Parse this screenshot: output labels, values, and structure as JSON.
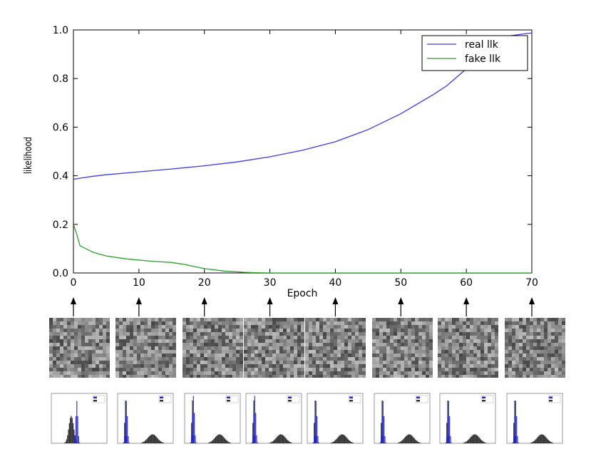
{
  "chart_data": {
    "type": "line",
    "xlabel": "Epoch",
    "ylabel": "likelihood",
    "xlim": [
      0,
      70
    ],
    "ylim": [
      0,
      1.0
    ],
    "xticks": [
      "0",
      "10",
      "20",
      "30",
      "40",
      "50",
      "60",
      "70"
    ],
    "yticks": [
      "0.0",
      "0.2",
      "0.4",
      "0.6",
      "0.8",
      "1.0"
    ],
    "grid": false,
    "legend_position": "top-right",
    "series": [
      {
        "name": "real llk",
        "color": "#3b3bdc",
        "x": [
          0,
          1,
          3,
          5,
          10,
          15,
          20,
          25,
          30,
          35,
          40,
          45,
          50,
          55,
          57,
          60,
          65,
          70
        ],
        "y": [
          0.385,
          0.39,
          0.398,
          0.404,
          0.416,
          0.428,
          0.441,
          0.457,
          0.478,
          0.505,
          0.54,
          0.59,
          0.655,
          0.735,
          0.77,
          0.84,
          0.97,
          0.988
        ]
      },
      {
        "name": "fake llk",
        "color": "#2e9c2e",
        "x": [
          0,
          0.5,
          1,
          3,
          5,
          8,
          12,
          15,
          17,
          20,
          23,
          26,
          28,
          30,
          35,
          40,
          70
        ],
        "y": [
          0.2,
          0.16,
          0.112,
          0.085,
          0.07,
          0.058,
          0.048,
          0.043,
          0.035,
          0.018,
          0.008,
          0.003,
          0.001,
          0.0,
          0.0,
          0.0,
          0.0
        ]
      }
    ],
    "sample_epochs": [
      0,
      10,
      20,
      30,
      40,
      50,
      60,
      70
    ],
    "histogram_legend": [
      "real",
      "fake"
    ],
    "histogram_colors": [
      "#2222cc",
      "#333333"
    ]
  }
}
